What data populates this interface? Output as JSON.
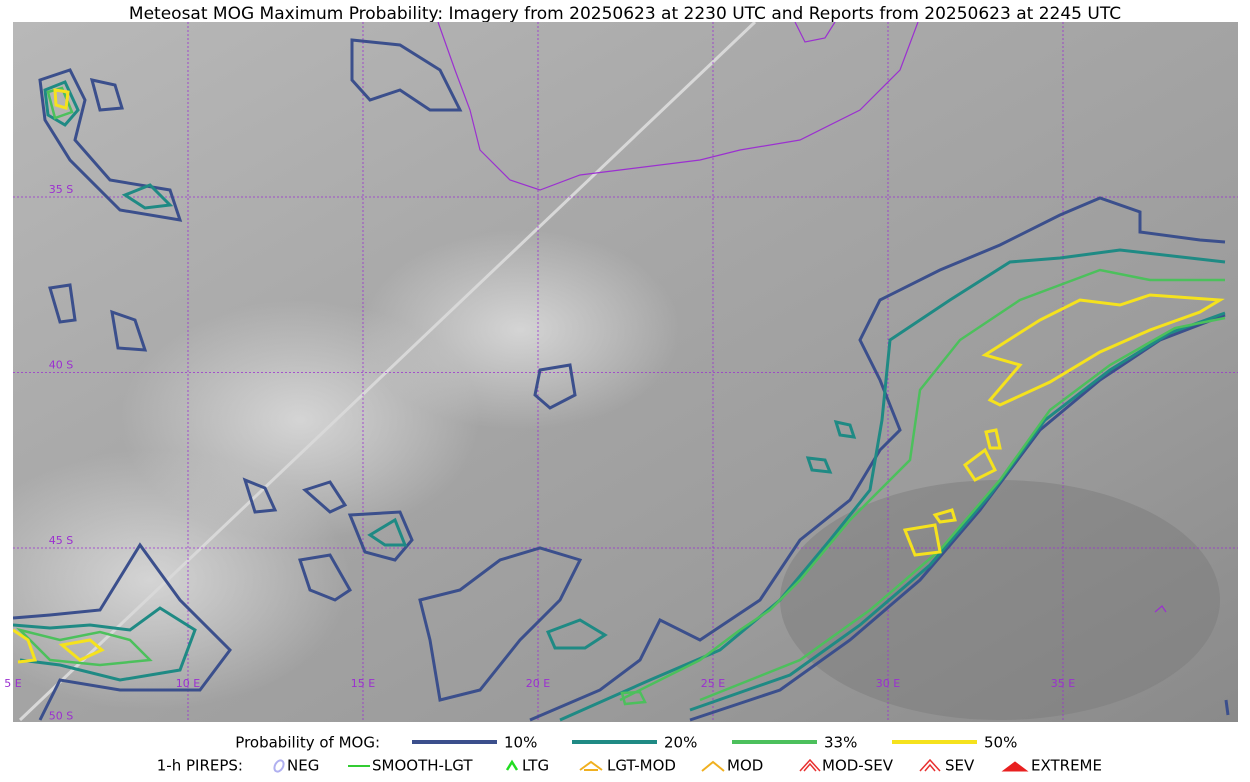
{
  "title": "Meteosat MOG Maximum Probability: Imagery from 20250623 at 2230 UTC and Reports from 20250623 at 2245 UTC",
  "map": {
    "lon_labels": [
      "5 E",
      "10 E",
      "15 E",
      "20 E",
      "25 E",
      "30 E",
      "35 E"
    ],
    "lat_labels": [
      "35 S",
      "40 S",
      "45 S",
      "50 S"
    ]
  },
  "legend": {
    "probability": {
      "title": "Probability of MOG:",
      "levels": [
        {
          "label": "10%",
          "color": "#3b4f8c"
        },
        {
          "label": "20%",
          "color": "#1f8a84"
        },
        {
          "label": "33%",
          "color": "#4cc05c"
        },
        {
          "label": "50%",
          "color": "#f5e21d"
        }
      ]
    },
    "pireps": {
      "title": "1-h PIREPS:",
      "items": [
        {
          "label": "NEG",
          "color": "#b0b0f0"
        },
        {
          "label": "SMOOTH-LGT",
          "color": "#33cc33"
        },
        {
          "label": "LTG",
          "color": "#22dd22"
        },
        {
          "label": "LGT-MOD",
          "color": "#f0b020"
        },
        {
          "label": "MOD",
          "color": "#f0b020"
        },
        {
          "label": "MOD-SEV",
          "color": "#e83030"
        },
        {
          "label": "SEV",
          "color": "#e83030"
        },
        {
          "label": "EXTREME",
          "color": "#e82020"
        }
      ]
    }
  }
}
